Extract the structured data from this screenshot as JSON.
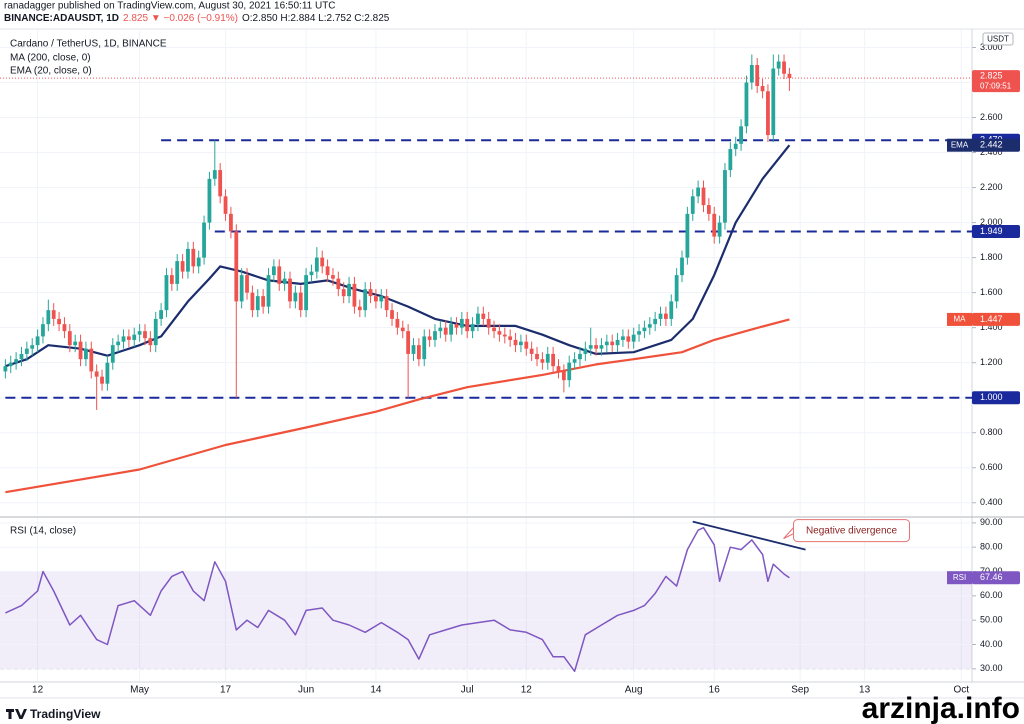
{
  "header": {
    "publisher": "ranadagger published on TradingView.com, August 30, 2021 16:50:11 UTC",
    "symbol": "BINANCE:ADAUSDT, 1D",
    "change": "2.825 ▼ −0.026 (−0.91%)",
    "ohlc": "O:2.850 H:2.884 L:2.752 C:2.825"
  },
  "footer": {
    "logo": "TradingView",
    "watermark": "arzinja.info"
  },
  "chart_data": [
    {
      "type": "candlestick",
      "title": "Cardano / TetherUS, 1D, BINANCE",
      "currency": "USDT",
      "countdown": "07:09:51",
      "up_color": "#26a69a",
      "down_color": "#ef5350",
      "x": [
        "Apr 6",
        "Apr 7",
        "Apr 8",
        "Apr 9",
        "Apr 10",
        "Apr 11",
        "Apr 12",
        "Apr 13",
        "Apr 14",
        "Apr 15",
        "Apr 16",
        "Apr 17",
        "Apr 18",
        "Apr 19",
        "Apr 20",
        "Apr 21",
        "Apr 22",
        "Apr 23",
        "Apr 24",
        "Apr 25",
        "Apr 26",
        "Apr 27",
        "Apr 28",
        "Apr 29",
        "Apr 30",
        "May 1",
        "May 2",
        "May 3",
        "May 4",
        "May 5",
        "May 6",
        "May 7",
        "May 8",
        "May 9",
        "May 10",
        "May 11",
        "May 12",
        "May 13",
        "May 14",
        "May 15",
        "May 16",
        "May 17",
        "May 18",
        "May 19",
        "May 20",
        "May 21",
        "May 22",
        "May 23",
        "May 24",
        "May 25",
        "May 26",
        "May 27",
        "May 28",
        "May 29",
        "May 30",
        "May 31",
        "Jun 1",
        "Jun 2",
        "Jun 3",
        "Jun 4",
        "Jun 5",
        "Jun 6",
        "Jun 7",
        "Jun 8",
        "Jun 9",
        "Jun 10",
        "Jun 11",
        "Jun 12",
        "Jun 13",
        "Jun 14",
        "Jun 15",
        "Jun 16",
        "Jun 17",
        "Jun 18",
        "Jun 19",
        "Jun 20",
        "Jun 21",
        "Jun 22",
        "Jun 23",
        "Jun 24",
        "Jun 25",
        "Jun 26",
        "Jun 27",
        "Jun 28",
        "Jun 29",
        "Jun 30",
        "Jul 1",
        "Jul 2",
        "Jul 3",
        "Jul 4",
        "Jul 5",
        "Jul 6",
        "Jul 7",
        "Jul 8",
        "Jul 9",
        "Jul 10",
        "Jul 11",
        "Jul 12",
        "Jul 13",
        "Jul 14",
        "Jul 15",
        "Jul 16",
        "Jul 17",
        "Jul 18",
        "Jul 19",
        "Jul 20",
        "Jul 21",
        "Jul 22",
        "Jul 23",
        "Jul 24",
        "Jul 25",
        "Jul 26",
        "Jul 27",
        "Jul 28",
        "Jul 29",
        "Jul 30",
        "Jul 31",
        "Aug 1",
        "Aug 2",
        "Aug 3",
        "Aug 4",
        "Aug 5",
        "Aug 6",
        "Aug 7",
        "Aug 8",
        "Aug 9",
        "Aug 10",
        "Aug 11",
        "Aug 12",
        "Aug 13",
        "Aug 14",
        "Aug 15",
        "Aug 16",
        "Aug 17",
        "Aug 18",
        "Aug 19",
        "Aug 20",
        "Aug 21",
        "Aug 22",
        "Aug 23",
        "Aug 24",
        "Aug 25",
        "Aug 26",
        "Aug 27",
        "Aug 28",
        "Aug 29",
        "Aug 30"
      ],
      "open": [
        1.15,
        1.18,
        1.2,
        1.22,
        1.25,
        1.28,
        1.3,
        1.35,
        1.42,
        1.5,
        1.45,
        1.42,
        1.38,
        1.3,
        1.32,
        1.22,
        1.28,
        1.15,
        1.12,
        1.08,
        1.2,
        1.3,
        1.32,
        1.35,
        1.33,
        1.36,
        1.38,
        1.34,
        1.3,
        1.45,
        1.5,
        1.7,
        1.65,
        1.78,
        1.72,
        1.85,
        1.75,
        1.8,
        2.0,
        2.25,
        2.3,
        2.15,
        2.05,
        1.95,
        1.55,
        1.7,
        1.6,
        1.5,
        1.58,
        1.52,
        1.7,
        1.75,
        1.65,
        1.68,
        1.55,
        1.6,
        1.5,
        1.7,
        1.72,
        1.8,
        1.75,
        1.7,
        1.68,
        1.62,
        1.58,
        1.65,
        1.52,
        1.5,
        1.62,
        1.58,
        1.55,
        1.58,
        1.5,
        1.45,
        1.4,
        1.38,
        1.25,
        1.3,
        1.22,
        1.35,
        1.33,
        1.38,
        1.4,
        1.36,
        1.42,
        1.4,
        1.45,
        1.38,
        1.42,
        1.48,
        1.45,
        1.4,
        1.38,
        1.36,
        1.35,
        1.33,
        1.3,
        1.32,
        1.28,
        1.25,
        1.22,
        1.2,
        1.25,
        1.18,
        1.15,
        1.1,
        1.2,
        1.22,
        1.25,
        1.28,
        1.3,
        1.28,
        1.3,
        1.32,
        1.3,
        1.33,
        1.35,
        1.32,
        1.36,
        1.38,
        1.4,
        1.42,
        1.45,
        1.48,
        1.45,
        1.55,
        1.7,
        1.8,
        2.05,
        2.15,
        2.2,
        2.1,
        2.05,
        1.92,
        2.0,
        2.3,
        2.42,
        2.45,
        2.55,
        2.8,
        2.9,
        2.78,
        2.75,
        2.5,
        2.88,
        2.92,
        2.85
      ],
      "high": [
        1.22,
        1.24,
        1.26,
        1.29,
        1.32,
        1.34,
        1.39,
        1.46,
        1.56,
        1.54,
        1.49,
        1.46,
        1.42,
        1.36,
        1.36,
        1.32,
        1.32,
        1.19,
        1.16,
        1.24,
        1.34,
        1.36,
        1.39,
        1.39,
        1.4,
        1.42,
        1.42,
        1.38,
        1.49,
        1.54,
        1.74,
        1.74,
        1.82,
        1.82,
        1.89,
        1.89,
        1.84,
        2.04,
        2.29,
        2.47,
        2.34,
        2.19,
        2.09,
        1.99,
        1.74,
        1.74,
        1.64,
        1.62,
        1.62,
        1.74,
        1.79,
        1.79,
        1.72,
        1.72,
        1.64,
        1.64,
        1.74,
        1.76,
        1.86,
        1.84,
        1.79,
        1.74,
        1.72,
        1.66,
        1.69,
        1.69,
        1.56,
        1.66,
        1.66,
        1.62,
        1.62,
        1.62,
        1.54,
        1.49,
        1.44,
        1.42,
        1.34,
        1.34,
        1.39,
        1.39,
        1.42,
        1.44,
        1.44,
        1.46,
        1.46,
        1.49,
        1.49,
        1.46,
        1.52,
        1.52,
        1.49,
        1.44,
        1.42,
        1.4,
        1.39,
        1.37,
        1.36,
        1.36,
        1.32,
        1.29,
        1.26,
        1.29,
        1.29,
        1.22,
        1.19,
        1.24,
        1.26,
        1.29,
        1.32,
        1.4,
        1.34,
        1.34,
        1.36,
        1.36,
        1.37,
        1.39,
        1.39,
        1.4,
        1.42,
        1.44,
        1.46,
        1.49,
        1.52,
        1.52,
        1.59,
        1.74,
        1.84,
        2.09,
        2.19,
        2.24,
        2.24,
        2.14,
        2.09,
        2.04,
        2.34,
        2.46,
        2.49,
        2.59,
        2.84,
        2.96,
        2.94,
        2.82,
        2.79,
        2.96,
        2.96,
        2.96,
        2.884
      ],
      "low": [
        1.11,
        1.14,
        1.16,
        1.18,
        1.21,
        1.24,
        1.26,
        1.31,
        1.38,
        1.41,
        1.38,
        1.34,
        1.26,
        1.26,
        1.18,
        1.18,
        1.11,
        0.93,
        1.04,
        1.04,
        1.16,
        1.26,
        1.28,
        1.29,
        1.29,
        1.32,
        1.3,
        1.26,
        1.26,
        1.41,
        1.46,
        1.61,
        1.61,
        1.68,
        1.68,
        1.71,
        1.71,
        1.76,
        1.96,
        2.21,
        2.11,
        2.01,
        1.91,
        1.0,
        1.51,
        1.56,
        1.46,
        1.46,
        1.48,
        1.48,
        1.66,
        1.61,
        1.61,
        1.51,
        1.51,
        1.46,
        1.46,
        1.66,
        1.68,
        1.71,
        1.66,
        1.64,
        1.58,
        1.54,
        1.54,
        1.48,
        1.46,
        1.46,
        1.54,
        1.51,
        1.51,
        1.46,
        1.41,
        1.36,
        1.34,
        1.0,
        1.21,
        1.18,
        1.18,
        1.29,
        1.29,
        1.34,
        1.32,
        1.32,
        1.36,
        1.36,
        1.34,
        1.34,
        1.38,
        1.41,
        1.36,
        1.34,
        1.32,
        1.31,
        1.29,
        1.26,
        1.26,
        1.24,
        1.21,
        1.18,
        1.16,
        1.16,
        1.14,
        1.11,
        1.03,
        1.06,
        1.16,
        1.18,
        1.21,
        1.24,
        1.24,
        1.24,
        1.26,
        1.26,
        1.26,
        1.29,
        1.28,
        1.28,
        1.32,
        1.34,
        1.36,
        1.38,
        1.41,
        1.41,
        1.41,
        1.51,
        1.66,
        1.76,
        2.01,
        2.11,
        2.06,
        2.01,
        1.88,
        1.88,
        1.96,
        2.26,
        2.38,
        2.41,
        2.51,
        2.76,
        2.74,
        2.71,
        2.46,
        2.46,
        2.84,
        2.82,
        2.752
      ],
      "close": [
        1.18,
        1.2,
        1.22,
        1.25,
        1.28,
        1.3,
        1.35,
        1.42,
        1.5,
        1.45,
        1.42,
        1.38,
        1.3,
        1.32,
        1.22,
        1.28,
        1.15,
        1.12,
        1.08,
        1.2,
        1.3,
        1.32,
        1.35,
        1.33,
        1.36,
        1.38,
        1.34,
        1.3,
        1.45,
        1.5,
        1.7,
        1.65,
        1.78,
        1.72,
        1.85,
        1.75,
        1.8,
        2.0,
        2.25,
        2.3,
        2.15,
        2.05,
        1.95,
        1.55,
        1.7,
        1.6,
        1.5,
        1.58,
        1.52,
        1.7,
        1.75,
        1.65,
        1.68,
        1.55,
        1.6,
        1.5,
        1.7,
        1.72,
        1.8,
        1.75,
        1.7,
        1.68,
        1.62,
        1.58,
        1.65,
        1.52,
        1.5,
        1.62,
        1.58,
        1.55,
        1.58,
        1.5,
        1.45,
        1.4,
        1.38,
        1.25,
        1.3,
        1.22,
        1.35,
        1.33,
        1.38,
        1.4,
        1.36,
        1.42,
        1.4,
        1.45,
        1.38,
        1.42,
        1.48,
        1.45,
        1.4,
        1.38,
        1.36,
        1.35,
        1.33,
        1.3,
        1.32,
        1.28,
        1.25,
        1.22,
        1.2,
        1.25,
        1.18,
        1.15,
        1.1,
        1.2,
        1.22,
        1.25,
        1.28,
        1.3,
        1.28,
        1.3,
        1.32,
        1.3,
        1.33,
        1.35,
        1.32,
        1.36,
        1.38,
        1.4,
        1.42,
        1.45,
        1.48,
        1.45,
        1.55,
        1.7,
        1.8,
        2.05,
        2.15,
        2.2,
        2.1,
        2.05,
        1.92,
        2.0,
        2.3,
        2.42,
        2.45,
        2.55,
        2.8,
        2.9,
        2.78,
        2.75,
        2.5,
        2.88,
        2.92,
        2.85,
        2.825
      ],
      "lines": [
        {
          "name": "MA (200, close, 0)",
          "short": "MA",
          "color": "#f0513a",
          "x": [
            "Apr 6",
            "May 1",
            "May 17",
            "Jun 1",
            "Jun 14",
            "Jun 22",
            "Jul 1",
            "Jul 15",
            "Jul 25",
            "Aug 1",
            "Aug 10",
            "Aug 16",
            "Aug 23",
            "Aug 30"
          ],
          "values": [
            0.46,
            0.59,
            0.73,
            0.83,
            0.92,
            0.99,
            1.06,
            1.13,
            1.19,
            1.22,
            1.26,
            1.33,
            1.39,
            1.447
          ]
        },
        {
          "name": "EMA (20, close, 0)",
          "short": "EMA",
          "color": "#1c2d6e",
          "x": [
            "Apr 6",
            "Apr 10",
            "Apr 14",
            "Apr 20",
            "Apr 25",
            "May 1",
            "May 5",
            "May 10",
            "May 14",
            "May 16",
            "May 20",
            "May 25",
            "May 31",
            "Jun 5",
            "Jun 10",
            "Jun 15",
            "Jun 20",
            "Jun 25",
            "Jul 1",
            "Jul 10",
            "Jul 15",
            "Jul 20",
            "Jul 25",
            "Aug 1",
            "Aug 8",
            "Aug 12",
            "Aug 16",
            "Aug 20",
            "Aug 25",
            "Aug 30"
          ],
          "values": [
            1.18,
            1.22,
            1.3,
            1.28,
            1.24,
            1.3,
            1.35,
            1.55,
            1.68,
            1.75,
            1.72,
            1.67,
            1.65,
            1.67,
            1.62,
            1.58,
            1.52,
            1.45,
            1.41,
            1.41,
            1.36,
            1.3,
            1.25,
            1.26,
            1.33,
            1.45,
            1.7,
            2.0,
            2.25,
            2.442
          ]
        }
      ],
      "levels": [
        {
          "value": 2.47,
          "label": "2.470",
          "from": "May 5"
        },
        {
          "value": 1.949,
          "from": "May 15"
        },
        {
          "value": 1,
          "label": "1.000",
          "from": "Apr 6"
        }
      ],
      "level_color": "#1a2a9c",
      "xlim": [
        "Apr 5",
        "Oct 3"
      ],
      "xticks": [
        {
          "value": "Apr 12",
          "label": "12"
        },
        {
          "value": "May 1",
          "label": "May"
        },
        {
          "value": "May 17",
          "label": "17"
        },
        {
          "value": "Jun 1",
          "label": "Jun"
        },
        {
          "value": "Jun 14",
          "label": "14"
        },
        {
          "value": "Jul 1",
          "label": "Jul"
        },
        {
          "value": "Jul 12",
          "label": "12"
        },
        {
          "value": "Aug 1",
          "label": "Aug"
        },
        {
          "value": "Aug 16",
          "label": "16"
        },
        {
          "value": "Sep 1",
          "label": "Sep"
        },
        {
          "value": "Sep 13",
          "label": "13"
        },
        {
          "value": "Oct 1",
          "label": "Oct"
        }
      ],
      "ylim": [
        0.33,
        3.1
      ],
      "yticks": [
        {
          "value": 0.4,
          "label": "0.400"
        },
        {
          "value": 0.6,
          "label": "0.600"
        },
        {
          "value": 0.8,
          "label": "0.800"
        },
        {
          "value": 1,
          "label": "1.000"
        },
        {
          "value": 1.2,
          "label": "1.200"
        },
        {
          "value": 1.4,
          "label": "1.400"
        },
        {
          "value": 1.6,
          "label": "1.600"
        },
        {
          "value": 1.8,
          "label": "1.800"
        },
        {
          "value": 2,
          "label": "2.000"
        },
        {
          "value": 2.2,
          "label": "2.200"
        },
        {
          "value": 2.4,
          "label": "2.400"
        },
        {
          "value": 2.6,
          "label": "2.600"
        },
        {
          "value": 2.8,
          "label": "2.800"
        },
        {
          "value": 3,
          "label": "3.000"
        }
      ],
      "grid": true
    },
    {
      "type": "line",
      "title": "RSI (14, close)",
      "short": "RSI",
      "color": "#7e57c2",
      "x": [
        "Apr 6",
        "Apr 9",
        "Apr 12",
        "Apr 13",
        "Apr 15",
        "Apr 18",
        "Apr 20",
        "Apr 23",
        "Apr 25",
        "Apr 27",
        "Apr 30",
        "May 1",
        "May 3",
        "May 5",
        "May 7",
        "May 9",
        "May 11",
        "May 13",
        "May 15",
        "May 17",
        "May 19",
        "May 21",
        "May 23",
        "May 25",
        "May 28",
        "May 30",
        "Jun 1",
        "Jun 4",
        "Jun 6",
        "Jun 9",
        "Jun 12",
        "Jun 15",
        "Jun 18",
        "Jun 20",
        "Jun 22",
        "Jun 24",
        "Jun 27",
        "Jun 30",
        "Jul 3",
        "Jul 6",
        "Jul 9",
        "Jul 12",
        "Jul 15",
        "Jul 17",
        "Jul 19",
        "Jul 21",
        "Jul 23",
        "Jul 26",
        "Jul 29",
        "Aug 1",
        "Aug 3",
        "Aug 5",
        "Aug 7",
        "Aug 9",
        "Aug 11",
        "Aug 13",
        "Aug 14",
        "Aug 16",
        "Aug 17",
        "Aug 19",
        "Aug 21",
        "Aug 23",
        "Aug 25",
        "Aug 26",
        "Aug 27",
        "Aug 29",
        "Aug 30"
      ],
      "values": [
        53,
        56,
        62,
        70,
        62,
        48,
        52,
        42,
        40,
        56,
        58,
        56,
        52,
        62,
        68,
        70,
        62,
        58,
        74,
        66,
        46,
        50,
        47,
        54,
        50,
        44,
        54,
        55,
        50,
        48,
        45,
        49,
        45,
        42,
        34,
        44,
        46,
        48,
        49,
        50,
        46,
        45,
        42,
        35,
        35,
        29,
        44,
        48,
        52,
        54,
        56,
        61,
        68,
        64,
        79,
        87,
        88,
        81,
        66,
        80,
        79,
        83,
        77,
        66,
        73,
        69,
        67.46
      ],
      "band": [
        30,
        70
      ],
      "annotation": {
        "text": "Negative divergence",
        "x": [
          "Aug 12",
          "Sep 2"
        ],
        "values": [
          90.5,
          79
        ]
      },
      "ylim": [
        25,
        92
      ],
      "yticks": [
        {
          "value": 30,
          "label": "30.00"
        },
        {
          "value": 40,
          "label": "40.00"
        },
        {
          "value": 50,
          "label": "50.00"
        },
        {
          "value": 60,
          "label": "60.00"
        },
        {
          "value": 70,
          "label": "70.00"
        },
        {
          "value": 80,
          "label": "80.00"
        },
        {
          "value": 90,
          "label": "90.00"
        }
      ],
      "grid": true
    }
  ]
}
